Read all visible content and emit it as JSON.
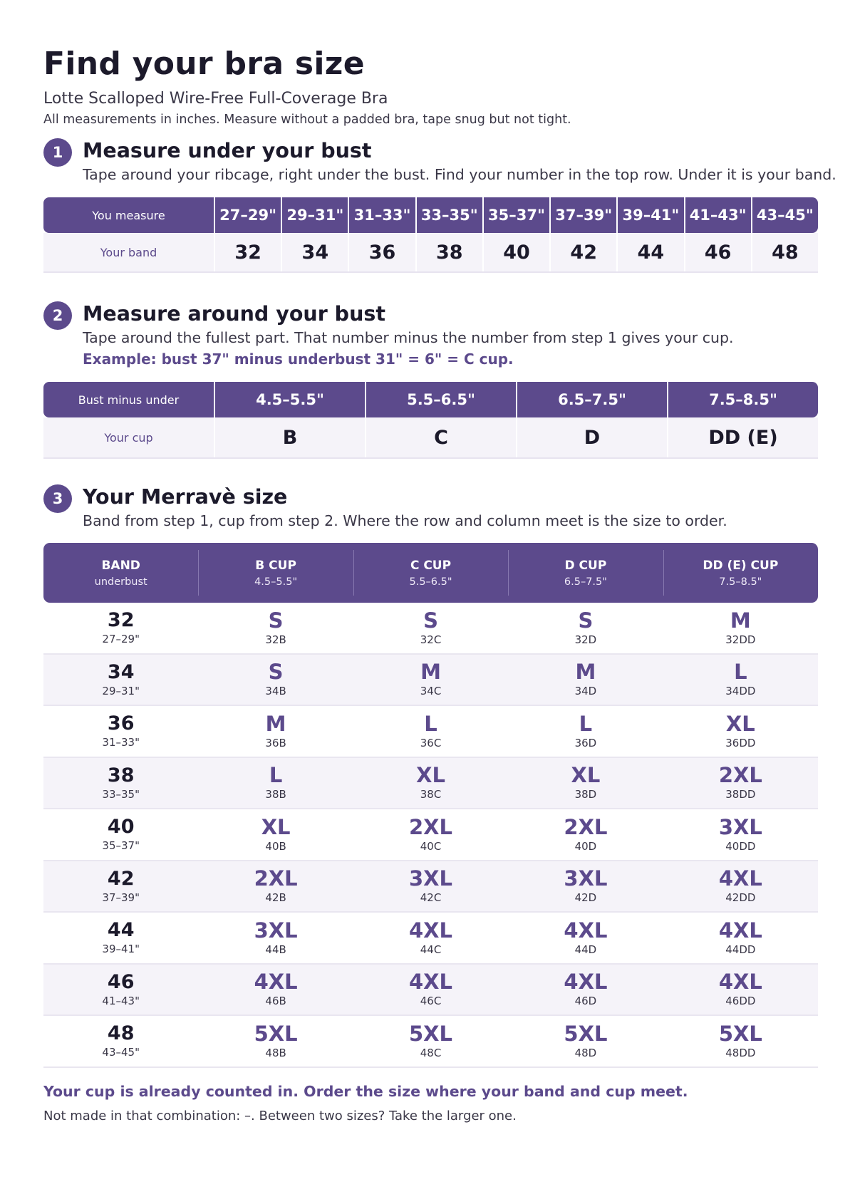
{
  "header": {
    "title": "Find your bra size",
    "subtitle": "Lotte Scalloped Wire-Free Full-Coverage Bra",
    "note": "All measurements in inches. Measure without a padded bra, tape snug but not tight."
  },
  "step1": {
    "number": "1",
    "title": "Measure under your bust",
    "description": "Tape around your ribcage, right under the bust. Find your number in the top row. Under it is your band.",
    "row_labels": [
      "You measure",
      "Your band"
    ],
    "measures": [
      "27–29\"",
      "29–31\"",
      "31–33\"",
      "33–35\"",
      "35–37\"",
      "37–39\"",
      "39–41\"",
      "41–43\"",
      "43–45\""
    ],
    "bands": [
      "32",
      "34",
      "36",
      "38",
      "40",
      "42",
      "44",
      "46",
      "48"
    ]
  },
  "step2": {
    "number": "2",
    "title": "Measure around your bust",
    "description": "Tape around the fullest part. That number minus the number from step 1 gives your cup.",
    "example": "Example: bust 37\" minus underbust 31\" = 6\" = C cup.",
    "row_labels": [
      "Bust minus under",
      "Your cup"
    ],
    "differences": [
      "4.5–5.5\"",
      "5.5–6.5\"",
      "6.5–7.5\"",
      "7.5–8.5\""
    ],
    "cups": [
      "B",
      "C",
      "D",
      "DD (E)"
    ]
  },
  "step3": {
    "number": "3",
    "title": "Your Merravè size",
    "description": "Band from step 1, cup from step 2. Where the row and column meet is the size to order.",
    "columns": [
      {
        "label": "BAND",
        "sub": "underbust"
      },
      {
        "label": "B CUP",
        "sub": "4.5–5.5\""
      },
      {
        "label": "C CUP",
        "sub": "5.5–6.5\""
      },
      {
        "label": "D CUP",
        "sub": "6.5–7.5\""
      },
      {
        "label": "DD (E) CUP",
        "sub": "7.5–8.5\""
      }
    ],
    "rows": [
      {
        "band": "32",
        "range": "27–29\"",
        "sizes": [
          {
            "size": "S",
            "code": "32B"
          },
          {
            "size": "S",
            "code": "32C"
          },
          {
            "size": "S",
            "code": "32D"
          },
          {
            "size": "M",
            "code": "32DD"
          }
        ]
      },
      {
        "band": "34",
        "range": "29–31\"",
        "sizes": [
          {
            "size": "S",
            "code": "34B"
          },
          {
            "size": "M",
            "code": "34C"
          },
          {
            "size": "M",
            "code": "34D"
          },
          {
            "size": "L",
            "code": "34DD"
          }
        ]
      },
      {
        "band": "36",
        "range": "31–33\"",
        "sizes": [
          {
            "size": "M",
            "code": "36B"
          },
          {
            "size": "L",
            "code": "36C"
          },
          {
            "size": "L",
            "code": "36D"
          },
          {
            "size": "XL",
            "code": "36DD"
          }
        ]
      },
      {
        "band": "38",
        "range": "33–35\"",
        "sizes": [
          {
            "size": "L",
            "code": "38B"
          },
          {
            "size": "XL",
            "code": "38C"
          },
          {
            "size": "XL",
            "code": "38D"
          },
          {
            "size": "2XL",
            "code": "38DD"
          }
        ]
      },
      {
        "band": "40",
        "range": "35–37\"",
        "sizes": [
          {
            "size": "XL",
            "code": "40B"
          },
          {
            "size": "2XL",
            "code": "40C"
          },
          {
            "size": "2XL",
            "code": "40D"
          },
          {
            "size": "3XL",
            "code": "40DD"
          }
        ]
      },
      {
        "band": "42",
        "range": "37–39\"",
        "sizes": [
          {
            "size": "2XL",
            "code": "42B"
          },
          {
            "size": "3XL",
            "code": "42C"
          },
          {
            "size": "3XL",
            "code": "42D"
          },
          {
            "size": "4XL",
            "code": "42DD"
          }
        ]
      },
      {
        "band": "44",
        "range": "39–41\"",
        "sizes": [
          {
            "size": "3XL",
            "code": "44B"
          },
          {
            "size": "4XL",
            "code": "44C"
          },
          {
            "size": "4XL",
            "code": "44D"
          },
          {
            "size": "4XL",
            "code": "44DD"
          }
        ]
      },
      {
        "band": "46",
        "range": "41–43\"",
        "sizes": [
          {
            "size": "4XL",
            "code": "46B"
          },
          {
            "size": "4XL",
            "code": "46C"
          },
          {
            "size": "4XL",
            "code": "46D"
          },
          {
            "size": "4XL",
            "code": "46DD"
          }
        ]
      },
      {
        "band": "48",
        "range": "43–45\"",
        "sizes": [
          {
            "size": "5XL",
            "code": "48B"
          },
          {
            "size": "5XL",
            "code": "48C"
          },
          {
            "size": "5XL",
            "code": "48D"
          },
          {
            "size": "5XL",
            "code": "48DD"
          }
        ]
      }
    ]
  },
  "footer": {
    "main": "Your cup is already counted in. Order the size where your band and cup meet.",
    "sub": "Not made in that combination: –.  Between two sizes? Take the larger one."
  },
  "colors": {
    "accent": "#5c4a8c",
    "row_alt": "#f5f3f9",
    "text": "#1c1a2b"
  }
}
